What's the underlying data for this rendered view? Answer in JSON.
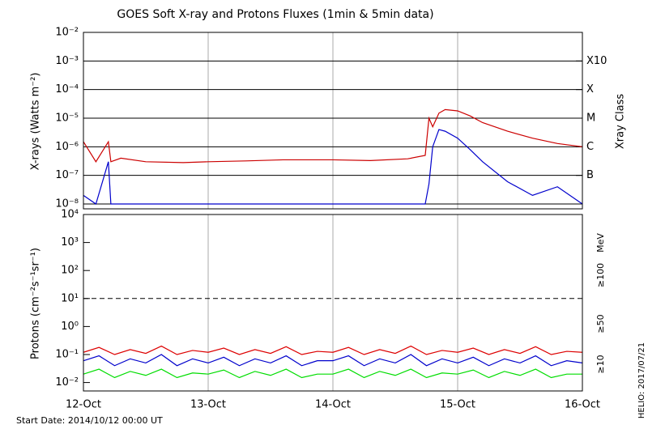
{
  "chart_data": [
    {
      "type": "line",
      "title": "GOES Soft X-ray and Protons Fluxes   (1min & 5min data)",
      "y_label": "X-rays (Watts m⁻²)",
      "y2_label": "Xray Class",
      "log_y": true,
      "grid": true,
      "x": [
        12.0,
        12.1,
        12.2,
        12.22,
        12.3,
        12.5,
        12.8,
        13.0,
        13.3,
        13.6,
        13.9,
        14.0,
        14.3,
        14.6,
        14.74,
        14.77,
        14.8,
        14.85,
        14.9,
        15.0,
        15.1,
        15.2,
        15.4,
        15.6,
        15.8,
        16.0
      ],
      "xlim": [
        12,
        16
      ],
      "xticks": [
        13,
        14,
        15
      ],
      "ylim": [
        1e-08,
        0.01
      ],
      "yticks": [
        {
          "value": 0.01,
          "label": "10⁻²"
        },
        {
          "value": 0.001,
          "label": "10⁻³"
        },
        {
          "value": 0.0001,
          "label": "10⁻⁴"
        },
        {
          "value": 1e-05,
          "label": "10⁻⁵"
        },
        {
          "value": 1e-06,
          "label": "10⁻⁶"
        },
        {
          "value": 1e-07,
          "label": "10⁻⁷"
        },
        {
          "value": 1e-08,
          "label": "10⁻⁸"
        }
      ],
      "y2ticks": [
        {
          "value": 0.001,
          "label": "X10"
        },
        {
          "value": 0.0001,
          "label": "X"
        },
        {
          "value": 1e-05,
          "label": "M"
        },
        {
          "value": 1e-06,
          "label": "C"
        },
        {
          "value": 1e-07,
          "label": "B"
        }
      ],
      "series": [
        {
          "color": "#cc0000",
          "values": [
            1.5e-06,
            3e-07,
            1.5e-06,
            3e-07,
            4e-07,
            3e-07,
            2.8e-07,
            3e-07,
            3.2e-07,
            3.5e-07,
            3.5e-07,
            3.5e-07,
            3.3e-07,
            3.8e-07,
            5e-07,
            1e-05,
            5e-06,
            1.5e-05,
            2e-05,
            1.8e-05,
            1.2e-05,
            7e-06,
            3.5e-06,
            2e-06,
            1.3e-06,
            1e-06
          ]
        },
        {
          "color": "#0000cc",
          "values": [
            2e-08,
            1e-08,
            3e-07,
            1e-08,
            1e-08,
            1e-08,
            1e-08,
            1e-08,
            1e-08,
            1e-08,
            1e-08,
            1e-08,
            1e-08,
            1e-08,
            1e-08,
            5e-08,
            1e-06,
            4e-06,
            3.5e-06,
            2e-06,
            8e-07,
            3e-07,
            6e-08,
            2e-08,
            4e-08,
            1e-08
          ]
        }
      ]
    },
    {
      "type": "line",
      "y_label": "Protons (cm⁻²s⁻¹sr⁻¹)",
      "legend_title": "MeV",
      "log_y": true,
      "threshold": 10,
      "x": [
        12.0,
        12.125,
        12.25,
        12.375,
        12.5,
        12.625,
        12.75,
        12.875,
        13.0,
        13.125,
        13.25,
        13.375,
        13.5,
        13.625,
        13.75,
        13.875,
        14.0,
        14.125,
        14.25,
        14.375,
        14.5,
        14.625,
        14.75,
        14.875,
        15.0,
        15.125,
        15.25,
        15.375,
        15.5,
        15.625,
        15.75,
        15.875,
        16.0
      ],
      "xlim": [
        12,
        16
      ],
      "xticks": [
        {
          "value": 12,
          "label": "12-Oct"
        },
        {
          "value": 13,
          "label": "13-Oct"
        },
        {
          "value": 14,
          "label": "14-Oct"
        },
        {
          "value": 15,
          "label": "15-Oct"
        },
        {
          "value": 16,
          "label": "16-Oct"
        }
      ],
      "ylim": [
        0.005,
        10000
      ],
      "yticks": [
        {
          "value": 10000,
          "label": "10⁴"
        },
        {
          "value": 1000,
          "label": "10³"
        },
        {
          "value": 100,
          "label": "10²"
        },
        {
          "value": 10,
          "label": "10¹"
        },
        {
          "value": 1,
          "label": "10⁰"
        },
        {
          "value": 0.1,
          "label": "10⁻¹"
        },
        {
          "value": 0.01,
          "label": "10⁻²"
        }
      ],
      "series": [
        {
          "name": "≥100",
          "color": "#00dd00",
          "values": [
            0.02,
            0.03,
            0.015,
            0.025,
            0.018,
            0.03,
            0.015,
            0.022,
            0.02,
            0.028,
            0.015,
            0.025,
            0.018,
            0.03,
            0.015,
            0.02,
            0.02,
            0.03,
            0.015,
            0.025,
            0.018,
            0.03,
            0.015,
            0.022,
            0.02,
            0.028,
            0.015,
            0.025,
            0.018,
            0.03,
            0.015,
            0.02,
            0.02
          ]
        },
        {
          "name": "≥50",
          "color": "#0000cc",
          "values": [
            0.06,
            0.09,
            0.04,
            0.07,
            0.05,
            0.1,
            0.04,
            0.07,
            0.05,
            0.08,
            0.04,
            0.07,
            0.05,
            0.09,
            0.04,
            0.06,
            0.06,
            0.09,
            0.04,
            0.07,
            0.05,
            0.1,
            0.04,
            0.07,
            0.05,
            0.08,
            0.04,
            0.07,
            0.05,
            0.09,
            0.04,
            0.06,
            0.05
          ]
        },
        {
          "name": "≥10",
          "color": "#dd0000",
          "values": [
            0.12,
            0.18,
            0.1,
            0.15,
            0.11,
            0.2,
            0.1,
            0.14,
            0.12,
            0.17,
            0.1,
            0.15,
            0.11,
            0.19,
            0.1,
            0.13,
            0.12,
            0.18,
            0.1,
            0.15,
            0.11,
            0.2,
            0.1,
            0.14,
            0.12,
            0.17,
            0.1,
            0.15,
            0.11,
            0.19,
            0.1,
            0.13,
            0.12
          ]
        }
      ]
    }
  ],
  "footer": {
    "start_date": "Start Date: 2014/10/12 00:00 UT",
    "credit": "HELIO: 2017/07/21"
  }
}
